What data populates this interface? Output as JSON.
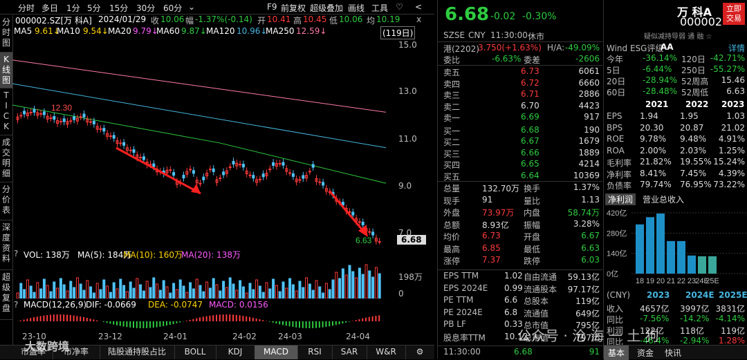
{
  "toolbar": {
    "items": [
      "分时",
      "多日",
      "1分",
      "5分",
      "15分",
      "30分",
      "60分",
      "⌄",
      "F9",
      "前复权",
      "超级叠加",
      "画线",
      "工具",
      "♡",
      "<"
    ]
  },
  "info": {
    "code": "000002.SZ[万 科A]",
    "date": "2024/01/29",
    "close_label": "收",
    "close": "10.06",
    "change_label": "幅",
    "change": "-1.37%(-0.14)",
    "open_label": "开",
    "open": "10.41",
    "high_label": "高",
    "high": "10.45",
    "low_label": "低",
    "low": "10.06",
    "avg_label": "均",
    "avg": "10.19",
    "close_icon": "x"
  },
  "ma": {
    "ma5_label": "MA5",
    "ma5": "9.61↓",
    "ma10_label": "MA10",
    "ma10": "9.54↓",
    "ma20_label": "MA20",
    "ma20": "9.79↓",
    "ma60_label": "MA60",
    "ma60": "9.87↓",
    "ma120_label": "MA120",
    "ma120": "10.96↓",
    "ma250_label": "MA250",
    "ma250": "12.59↓",
    "days": "(119日)"
  },
  "side_tabs": [
    "分\n时\n图",
    "K\n线\n图",
    "T\nI\nC\nK",
    "成\n交\n明\n细",
    "分\n价\n表",
    "深\n度\n资\n料",
    "超\n级\n复\n盘"
  ],
  "price_axis": [
    "15.0",
    "13.0",
    "11.0",
    "9.0",
    "7.0"
  ],
  "current_price_tag": "6.68",
  "annotations": {
    "high": "12.30",
    "low": "6.63"
  },
  "volume": {
    "vol_label": "VOL: 138万",
    "ma5": "MA(5): 184万",
    "ma10": "MA(10): 160万",
    "ma20": "MA(20): 138万",
    "axis_top": "198万",
    "axis_zero": "0"
  },
  "macd": {
    "label": "MACD(12,26,9)",
    "dif": "DIF: -0.0669",
    "dea": "DEA: -0.0747",
    "macd": "MACD: 0.0156"
  },
  "dates": [
    "23-10",
    "23-12",
    "24-01",
    "24-02",
    "24-03",
    "24-04"
  ],
  "bottom_tabs": [
    "市盈率",
    "市净率",
    "陆股通持股占比",
    "BOLL",
    "KDJ",
    "MACD",
    "RSI",
    "SAR",
    "W&R"
  ],
  "bottom_active": "MACD",
  "quote": {
    "price": "6.68",
    "chg": "-0.02",
    "pct": "-0.30%",
    "exchange": "SZSE",
    "currency": "CNY",
    "time": "11:30:00",
    "status": "休市",
    "hk_label": "港(2202)",
    "hk_value": "3.750(+1.63%)",
    "ha_label": "H/A:",
    "ha_value": "-49.09%",
    "weibi_label": "委比",
    "weibi": "-6.63%",
    "weicha_label": "委差",
    "weicha": "-2606",
    "sells": [
      {
        "name": "卖五",
        "price": "6.73",
        "vol": "6061"
      },
      {
        "name": "卖四",
        "price": "6.72",
        "vol": "6660"
      },
      {
        "name": "卖三",
        "price": "6.71",
        "vol": "2886"
      },
      {
        "name": "卖二",
        "price": "6.70",
        "vol": "4423"
      },
      {
        "name": "卖一",
        "price": "6.69",
        "vol": "917"
      }
    ],
    "buys": [
      {
        "name": "买一",
        "price": "6.68",
        "vol": "190"
      },
      {
        "name": "买二",
        "price": "6.67",
        "vol": "1679"
      },
      {
        "name": "买三",
        "price": "6.66",
        "vol": "1889"
      },
      {
        "name": "买四",
        "price": "6.65",
        "vol": "4214"
      },
      {
        "name": "买五",
        "price": "6.64",
        "vol": "10369"
      }
    ],
    "stats": [
      {
        "l1": "总量",
        "v1": "132.70万",
        "l2": "换手",
        "v2": "1.37%"
      },
      {
        "l1": "现手",
        "v1": "91",
        "l2": "量比",
        "v2": "1.13"
      },
      {
        "l1": "外盘",
        "v1": "73.97万",
        "l2": "内盘",
        "v2": "58.74万"
      },
      {
        "l1": "总额",
        "v1": "8.93亿",
        "l2": "振幅",
        "v2": "3.28%"
      },
      {
        "l1": "均价",
        "v1": "6.73",
        "l2": "开盘",
        "v2": "6.67"
      },
      {
        "l1": "最高",
        "v1": "6.85",
        "l2": "最低",
        "v2": "6.63"
      },
      {
        "l1": "涨停",
        "v1": "7.37",
        "l2": "跌停",
        "v2": "6.03"
      }
    ],
    "fund": [
      {
        "l1": "EPS TTM",
        "v1": "1.02",
        "l2": "自由流通",
        "v2": "59.13亿"
      },
      {
        "l1": "EPS 2024E",
        "v1": "0.99",
        "l2": "流通股本",
        "v2": "97.17亿"
      },
      {
        "l1": "PE TTM",
        "v1": "6.6",
        "l2": "总股本",
        "v2": "119亿"
      },
      {
        "l1": "PE 2024E",
        "v1": "6.8",
        "l2": "流通值",
        "v2": "649亿"
      },
      {
        "l1": "PB LF",
        "v1": "0.33",
        "l2": "总市值",
        "v2": "795亿"
      },
      {
        "l1": "股息率TTM",
        "v1": "10.12",
        "l2": "总市值",
        "v2": "797亿"
      }
    ],
    "last_time": "11:30:00",
    "last_price": "6.68",
    "last_vol": "91"
  },
  "f10": {
    "name": "万 科A",
    "code": "000002",
    "trade_button": "立即\n交易",
    "subtitle": "疑似减持导弱 通 融 ☆",
    "esg_label": "Wind ESG评级",
    "esg": "AA",
    "detail": "详情",
    "perf": [
      {
        "l1": "今年",
        "v1": "-36.14%",
        "l2": "120日",
        "v2": "-42.71%"
      },
      {
        "l1": "5日",
        "v1": "-6.44%",
        "l2": "250日",
        "v2": "-55.27%"
      },
      {
        "l1": "20日",
        "v1": "-28.94%",
        "l2": "52周高",
        "v2": "15.46"
      },
      {
        "l1": "60日",
        "v1": "-28.48%",
        "l2": "52周低",
        "v2": "6.63"
      }
    ],
    "years": [
      "2021",
      "2022",
      "2023"
    ],
    "metrics": [
      {
        "name": "EPS",
        "v": [
          "1.94",
          "1.95",
          "1.03"
        ]
      },
      {
        "name": "BPS",
        "v": [
          "20.30",
          "20.87",
          "21.02"
        ]
      },
      {
        "name": "ROE",
        "v": [
          "9.78%",
          "9.48%",
          "4.91%"
        ]
      },
      {
        "name": "ROA",
        "v": [
          "2.00%",
          "2.03%",
          "1.25%"
        ]
      },
      {
        "name": "毛利率",
        "v": [
          "21.82%",
          "19.55%",
          "15.24%"
        ]
      },
      {
        "name": "净利率",
        "v": [
          "8.41%",
          "7.45%",
          "4.39%"
        ]
      },
      {
        "name": "负债率",
        "v": [
          "79.74%",
          "76.95%",
          "73.22%"
        ]
      }
    ],
    "tabs": [
      "净利润",
      "营业总收入"
    ],
    "tab_active": "净利润",
    "chart_data": {
      "type": "bar",
      "categories": [
        "18",
        "19",
        "20",
        "21",
        "22",
        "23",
        "24E",
        "25E"
      ],
      "values": [
        340,
        390,
        415,
        225,
        225,
        125,
        120,
        120
      ],
      "ylabels": [
        "420亿",
        "280亿",
        "140亿",
        "0亿"
      ],
      "ylim": [
        0,
        420
      ]
    },
    "cny_label": "(CNY)",
    "cny_years": [
      "2023",
      "2024E",
      "2025E"
    ],
    "rev": [
      {
        "name": "收入",
        "v": [
          "4657亿",
          "3997亿",
          "3831亿"
        ]
      },
      {
        "name": "同比",
        "v": [
          "-7.56%",
          "-14.2%",
          "-4.14%"
        ]
      },
      {
        "name": "利润",
        "v": [
          "122亿",
          "118亿",
          "119亿"
        ]
      },
      {
        "name": "同比",
        "v": [
          "-46.4%",
          "-2.94%",
          "1.28%"
        ]
      }
    ],
    "bottom_tabs": [
      "基本",
      "资金",
      "快讯"
    ]
  },
  "watermark": {
    "left": "大数跨境",
    "right": "公众号 · 沧 海 一 土 狗"
  },
  "colors": {
    "up": "#ff3b3b",
    "down": "#2ecc40",
    "bar": "#1e90c8",
    "bar_est": "#3aa79a",
    "bg": "#000000"
  }
}
